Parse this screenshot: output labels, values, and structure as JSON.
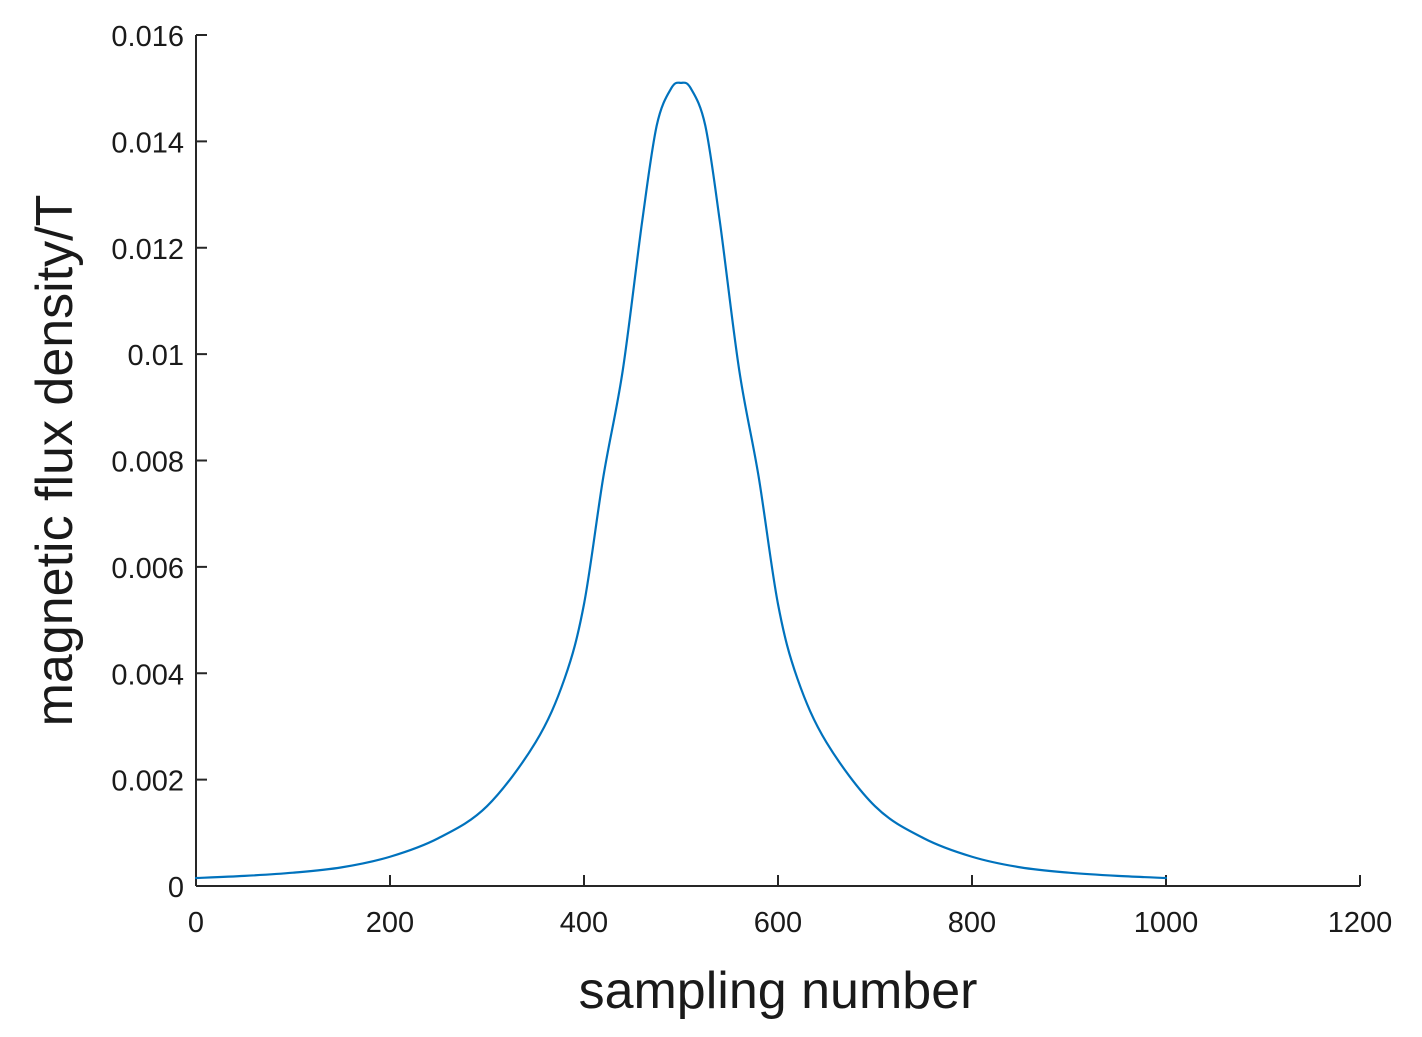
{
  "chart_data": {
    "type": "line",
    "xlabel": "sampling number",
    "ylabel": "magnetic flux density/T",
    "xlim": [
      0,
      1200
    ],
    "ylim": [
      0,
      0.016
    ],
    "grid": false,
    "xticks": [
      0,
      200,
      400,
      600,
      800,
      1000,
      1200
    ],
    "xtick_labels": [
      "0",
      "200",
      "400",
      "600",
      "800",
      "1000",
      "1200"
    ],
    "yticks": [
      0,
      0.002,
      0.004,
      0.006,
      0.008,
      0.01,
      0.012,
      0.014,
      0.016
    ],
    "ytick_labels": [
      "0",
      "0.002",
      "0.004",
      "0.006",
      "0.008",
      "0.01",
      "0.012",
      "0.014",
      "0.016"
    ],
    "line_color": "#0072BD",
    "series": [
      {
        "x": [
          0,
          50,
          100,
          150,
          200,
          250,
          300,
          350,
          380,
          400,
          420,
          440,
          460,
          475,
          490,
          500,
          510,
          525,
          540,
          560,
          580,
          600,
          620,
          650,
          700,
          750,
          800,
          850,
          900,
          950,
          1000
        ],
        "values": [
          0.00015,
          0.00019,
          0.00025,
          0.00035,
          0.00055,
          0.0009,
          0.0015,
          0.0027,
          0.0039,
          0.0053,
          0.0077,
          0.0097,
          0.0125,
          0.0143,
          0.015,
          0.0151,
          0.015,
          0.0143,
          0.0125,
          0.0097,
          0.0077,
          0.0053,
          0.0039,
          0.0027,
          0.0015,
          0.0009,
          0.00055,
          0.00035,
          0.00025,
          0.00019,
          0.00015
        ]
      }
    ]
  }
}
